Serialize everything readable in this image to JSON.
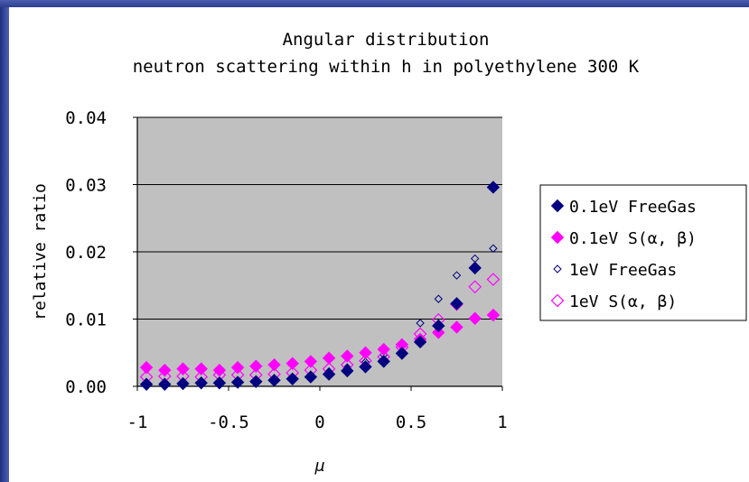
{
  "chart_data": {
    "type": "scatter",
    "title_lines": [
      "Angular distribution",
      "neutron scattering within h in polyethylene 300 K"
    ],
    "xlabel": "μ",
    "ylabel": "relative ratio",
    "xlim": [
      -1,
      1
    ],
    "ylim": [
      0,
      0.04
    ],
    "xticks": [
      -1,
      -0.5,
      0,
      0.5,
      1
    ],
    "xtick_labels": [
      "-1",
      "-0.5",
      "0",
      "0.5",
      "1"
    ],
    "yticks": [
      0,
      0.01,
      0.02,
      0.03,
      0.04
    ],
    "ytick_labels": [
      "0.00",
      "0.01",
      "0.02",
      "0.03",
      "0.04"
    ],
    "grid": "horizontal",
    "plot_background": "#c0c0c0",
    "legend_position": "right",
    "x": [
      -0.95,
      -0.85,
      -0.75,
      -0.65,
      -0.55,
      -0.45,
      -0.35,
      -0.25,
      -0.15,
      -0.05,
      0.05,
      0.15,
      0.25,
      0.35,
      0.45,
      0.55,
      0.65,
      0.75,
      0.85,
      0.95
    ],
    "series": [
      {
        "name": "0.1eV FreeGas",
        "marker": "filled-diamond-large",
        "color": "#000080",
        "values": [
          0.0003,
          0.0003,
          0.0004,
          0.0005,
          0.0005,
          0.0006,
          0.0007,
          0.0009,
          0.0011,
          0.0014,
          0.0018,
          0.0023,
          0.0029,
          0.0037,
          0.0049,
          0.0066,
          0.009,
          0.0123,
          0.0176,
          0.0296
        ]
      },
      {
        "name": "0.1eV S(α, β)",
        "marker": "filled-diamond-large",
        "color": "#ff00ff",
        "values": [
          0.0028,
          0.0024,
          0.0026,
          0.0026,
          0.0024,
          0.0028,
          0.003,
          0.0032,
          0.0034,
          0.0037,
          0.0042,
          0.0045,
          0.005,
          0.0055,
          0.0062,
          0.007,
          0.008,
          0.0088,
          0.0101,
          0.0106
        ]
      },
      {
        "name": "1eV FreeGas",
        "marker": "hollow-diamond-small",
        "color": "#000080",
        "values": [
          0.0003,
          0.0003,
          0.0003,
          0.0004,
          0.0005,
          0.0006,
          0.0008,
          0.001,
          0.0013,
          0.0017,
          0.0022,
          0.0028,
          0.0036,
          0.0047,
          0.0065,
          0.0094,
          0.013,
          0.0165,
          0.019,
          0.0205
        ]
      },
      {
        "name": "1eV S(α, β)",
        "marker": "hollow-diamond-large",
        "color": "#ff00ff",
        "values": [
          0.0014,
          0.0015,
          0.0015,
          0.0014,
          0.0017,
          0.0017,
          0.0017,
          0.0018,
          0.002,
          0.0024,
          0.0026,
          0.0032,
          0.0038,
          0.0044,
          0.0058,
          0.0078,
          0.0099,
          0.0122,
          0.0148,
          0.0159
        ]
      }
    ]
  }
}
